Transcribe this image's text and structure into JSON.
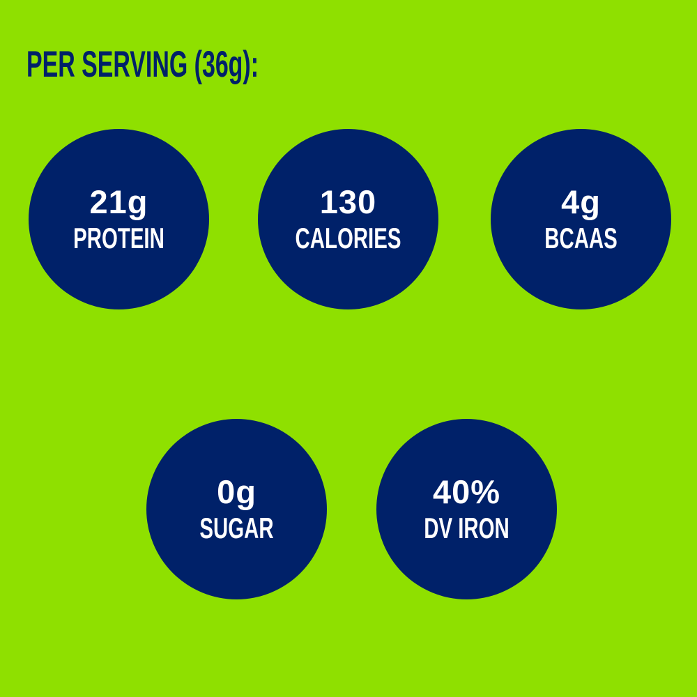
{
  "title": "PER SERVING (36g):",
  "colors": {
    "background": "#8fe000",
    "circle": "#002169",
    "text": "#ffffff"
  },
  "stats": [
    {
      "value": "21g",
      "label": "PROTEIN"
    },
    {
      "value": "130",
      "label": "CALORIES"
    },
    {
      "value": "4g",
      "label": "BCAAS"
    },
    {
      "value": "0g",
      "label": "SUGAR"
    },
    {
      "value": "40%",
      "label": "DV IRON"
    }
  ]
}
